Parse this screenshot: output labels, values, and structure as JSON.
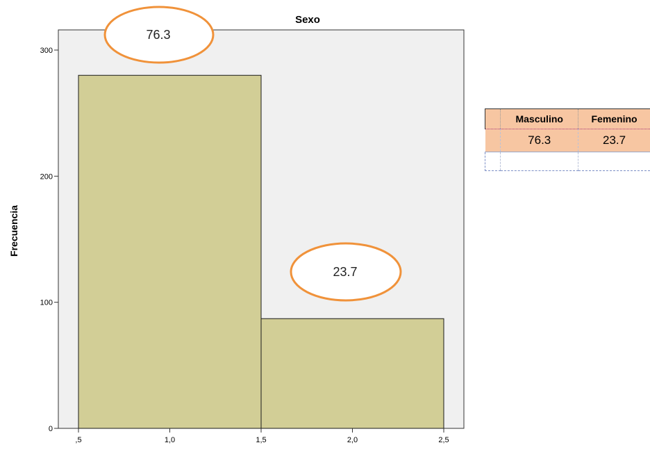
{
  "chart_data": {
    "type": "bar",
    "title": "Sexo",
    "ylabel": "Frecuencia",
    "xlabel": "",
    "bins": [
      {
        "x0": 0.5,
        "x1": 1.5,
        "value": 280
      },
      {
        "x0": 1.5,
        "x1": 2.5,
        "value": 87
      }
    ],
    "xticks": [
      ",5",
      "1,0",
      "1,5",
      "2,0",
      "2,5"
    ],
    "xtick_values": [
      0.5,
      1.0,
      1.5,
      2.0,
      2.5
    ],
    "yticks": [
      "0",
      "100",
      "200",
      "300"
    ],
    "ytick_values": [
      0,
      100,
      200,
      300
    ],
    "xlim": [
      0.5,
      2.5
    ],
    "ylim": [
      0,
      316
    ],
    "grid": false,
    "colors": {
      "bar": "#d2ce96",
      "plot_bg": "#f0f0f0",
      "callout": "#f0923a"
    },
    "annotations": [
      "76.3",
      "23.7"
    ]
  },
  "table": {
    "headers": [
      "",
      "Masculino",
      "Femenino"
    ],
    "row": [
      "",
      "76.3",
      "23.7"
    ],
    "empty": [
      "",
      "",
      ""
    ]
  }
}
